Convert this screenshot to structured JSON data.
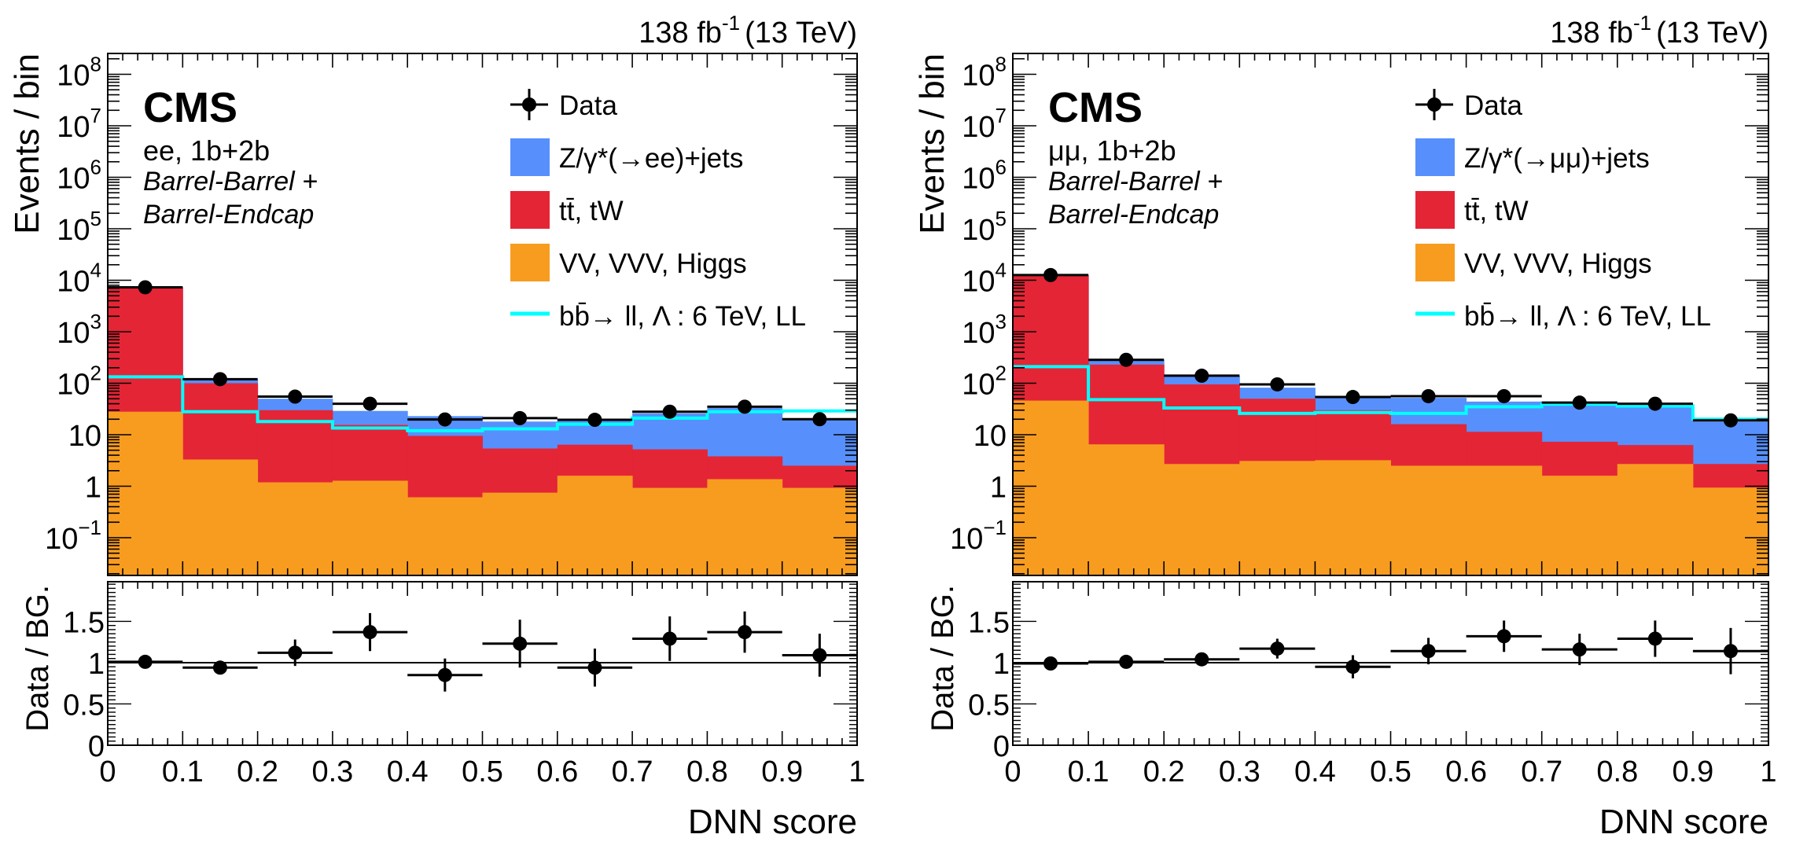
{
  "figure": {
    "panels": [
      "left",
      "right"
    ]
  },
  "chart_data": [
    {
      "type": "bar",
      "subtype": "stacked-histogram-with-ratio",
      "title": "",
      "lumi_label": "138 fb",
      "lumi_exp": "-1",
      "energy_label": "(13 TeV)",
      "experiment": "CMS",
      "channel_label": "ee, 1b+2b",
      "region_line1": "Barrel-Barrel +",
      "region_line2": "Barrel-Endcap",
      "xlabel": "DNN score",
      "ylabel": "Events / bin",
      "ratio_ylabel": "Data / BG.",
      "yscale": "log",
      "ylim": [
        0.018,
        270000000
      ],
      "ratio_ylim": [
        0,
        1.98
      ],
      "xlim": [
        0,
        1
      ],
      "bin_edges": [
        0,
        0.1,
        0.2,
        0.3,
        0.4,
        0.5,
        0.6,
        0.7,
        0.8,
        0.9,
        1.0
      ],
      "x_tick_labels": [
        "0",
        "0.1",
        "0.2",
        "0.3",
        "0.4",
        "0.5",
        "0.6",
        "0.7",
        "0.8",
        "0.9",
        "1"
      ],
      "y_tick_labels": [
        {
          "value": 0.1,
          "base": "10",
          "exp": "−1"
        },
        {
          "value": 1,
          "base": "1",
          "exp": ""
        },
        {
          "value": 10,
          "base": "10",
          "exp": ""
        },
        {
          "value": 100,
          "base": "10",
          "exp": "2"
        },
        {
          "value": 1000,
          "base": "10",
          "exp": "3"
        },
        {
          "value": 10000,
          "base": "10",
          "exp": "4"
        },
        {
          "value": 100000,
          "base": "10",
          "exp": "5"
        },
        {
          "value": 1000000,
          "base": "10",
          "exp": "6"
        },
        {
          "value": 10000000,
          "base": "10",
          "exp": "7"
        },
        {
          "value": 100000000,
          "base": "10",
          "exp": "8"
        }
      ],
      "ratio_tick_labels": [
        {
          "value": 0,
          "label": "0"
        },
        {
          "value": 0.5,
          "label": "0.5"
        },
        {
          "value": 1,
          "label": "1"
        },
        {
          "value": 1.5,
          "label": "1.5"
        }
      ],
      "legend": {
        "placement": "top-right",
        "entries": [
          {
            "key": "data",
            "label": "Data",
            "style": "marker"
          },
          {
            "key": "dy",
            "label": "Z/γ*(→ee)+jets",
            "style": "fill",
            "color": "#5790fc"
          },
          {
            "key": "tt",
            "label": "tt̄, tW",
            "style": "fill",
            "color": "#e42536"
          },
          {
            "key": "vv",
            "label": "VV, VVV, Higgs",
            "style": "fill",
            "color": "#f89c20"
          },
          {
            "key": "signal",
            "label": "bb̄→ ll,   Λ : 6 TeV, LL",
            "style": "line",
            "color": "#00ffff"
          }
        ]
      },
      "stack_cumulative": {
        "vv": [
          28,
          3.3,
          1.19,
          1.28,
          0.61,
          0.75,
          1.6,
          0.93,
          1.37,
          0.93
        ],
        "tt": [
          7300,
          100,
          30,
          15.5,
          9.5,
          5.4,
          6.4,
          5.2,
          3.8,
          2.5
        ],
        "dy": [
          7300,
          120,
          50,
          29,
          23,
          18,
          20,
          26,
          33,
          20
        ]
      },
      "signal": [
        133,
        28,
        18,
        13.5,
        12,
        13,
        16,
        21,
        28,
        29
      ],
      "data": [
        7300,
        120,
        55,
        40,
        19.8,
        21,
        19.5,
        28,
        35,
        20
      ],
      "ratio": {
        "values": [
          1.01,
          0.94,
          1.12,
          1.37,
          0.85,
          1.23,
          0.94,
          1.29,
          1.37,
          1.09
        ],
        "errors": [
          0.02,
          0.03,
          0.16,
          0.23,
          0.2,
          0.29,
          0.23,
          0.27,
          0.25,
          0.26
        ]
      }
    },
    {
      "type": "bar",
      "subtype": "stacked-histogram-with-ratio",
      "title": "",
      "lumi_label": "138 fb",
      "lumi_exp": "-1",
      "energy_label": "(13 TeV)",
      "experiment": "CMS",
      "channel_label": "μμ, 1b+2b",
      "region_line1": "Barrel-Barrel +",
      "region_line2": "Barrel-Endcap",
      "xlabel": "DNN score",
      "ylabel": "Events /  bin",
      "ratio_ylabel": "Data / BG.",
      "yscale": "log",
      "ylim": [
        0.018,
        270000000
      ],
      "ratio_ylim": [
        0,
        1.98
      ],
      "xlim": [
        0,
        1
      ],
      "bin_edges": [
        0,
        0.1,
        0.2,
        0.3,
        0.4,
        0.5,
        0.6,
        0.7,
        0.8,
        0.9,
        1.0
      ],
      "x_tick_labels": [
        "0",
        "0.1",
        "0.2",
        "0.3",
        "0.4",
        "0.5",
        "0.6",
        "0.7",
        "0.8",
        "0.9",
        "1"
      ],
      "y_tick_labels": [
        {
          "value": 0.1,
          "base": "10",
          "exp": "−1"
        },
        {
          "value": 1,
          "base": "1",
          "exp": ""
        },
        {
          "value": 10,
          "base": "10",
          "exp": ""
        },
        {
          "value": 100,
          "base": "10",
          "exp": "2"
        },
        {
          "value": 1000,
          "base": "10",
          "exp": "3"
        },
        {
          "value": 10000,
          "base": "10",
          "exp": "4"
        },
        {
          "value": 100000,
          "base": "10",
          "exp": "5"
        },
        {
          "value": 1000000,
          "base": "10",
          "exp": "6"
        },
        {
          "value": 10000000,
          "base": "10",
          "exp": "7"
        },
        {
          "value": 100000000,
          "base": "10",
          "exp": "8"
        }
      ],
      "ratio_tick_labels": [
        {
          "value": 0,
          "label": "0"
        },
        {
          "value": 0.5,
          "label": "0.5"
        },
        {
          "value": 1,
          "label": "1"
        },
        {
          "value": 1.5,
          "label": "1.5"
        }
      ],
      "legend": {
        "placement": "top-right",
        "entries": [
          {
            "key": "data",
            "label": "Data",
            "style": "marker"
          },
          {
            "key": "dy",
            "label": "Z/γ*(→μμ)+jets",
            "style": "fill",
            "color": "#5790fc"
          },
          {
            "key": "tt",
            "label": "tt̄, tW",
            "style": "fill",
            "color": "#e42536"
          },
          {
            "key": "vv",
            "label": "VV, VVV, Higgs",
            "style": "fill",
            "color": "#f89c20"
          },
          {
            "key": "signal",
            "label": "bb̄→ ll,   Λ : 6 TeV, LL",
            "style": "line",
            "color": "#00ffff"
          }
        ]
      },
      "stack_cumulative": {
        "vv": [
          46,
          6.5,
          2.7,
          3.1,
          3.2,
          2.5,
          2.5,
          1.6,
          2.7,
          0.94
        ],
        "tt": [
          12600,
          230,
          95,
          50,
          30,
          16,
          11.4,
          7.3,
          6.3,
          2.7
        ],
        "dy": [
          12600,
          285,
          140,
          82,
          56,
          52,
          44,
          42,
          39,
          18
        ]
      },
      "signal": [
        210,
        48,
        33,
        26,
        27,
        26,
        35,
        39,
        36,
        20
      ],
      "data": [
        12600,
        285,
        140,
        95,
        54,
        56,
        56,
        42,
        40,
        19
      ],
      "ratio": {
        "values": [
          0.99,
          1.01,
          1.04,
          1.17,
          0.95,
          1.14,
          1.32,
          1.16,
          1.29,
          1.14
        ],
        "errors": [
          0.02,
          0.02,
          0.04,
          0.12,
          0.14,
          0.16,
          0.19,
          0.19,
          0.22,
          0.28
        ]
      }
    }
  ]
}
